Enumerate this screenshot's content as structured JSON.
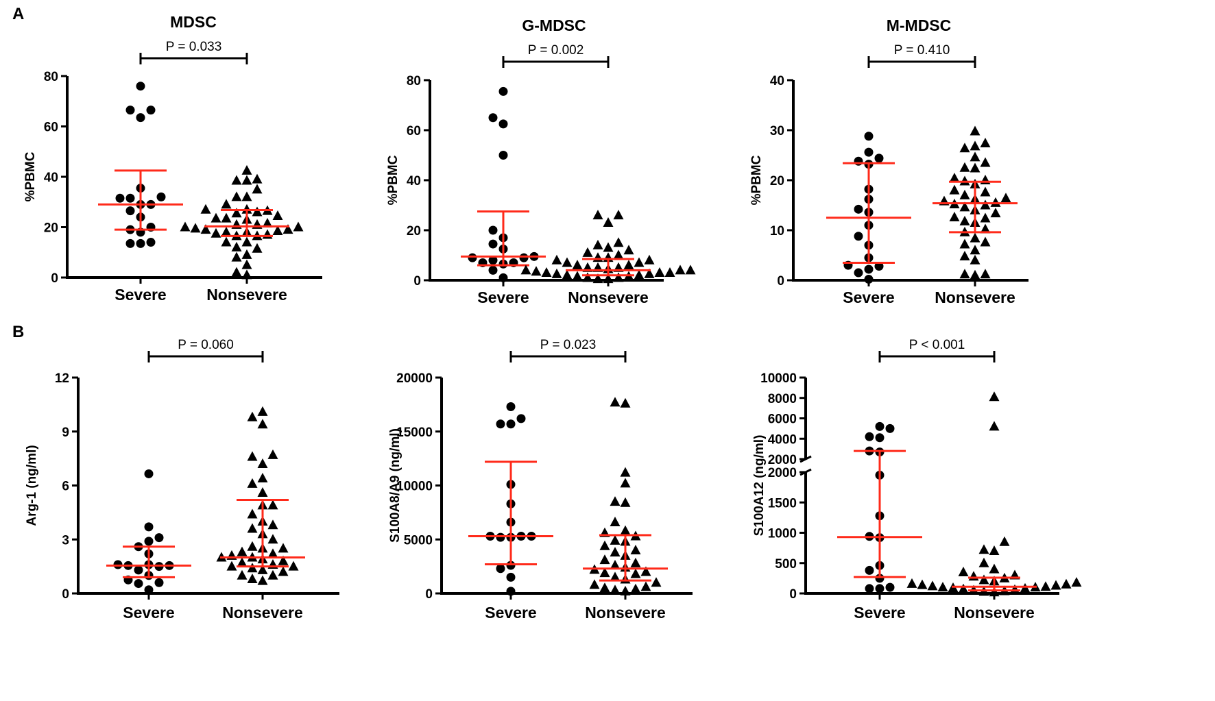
{
  "panel_labels": [
    "A",
    "B"
  ],
  "chart_data": [
    {
      "type": "scatter",
      "title": "MDSC",
      "ylabel": "%PBMC",
      "ylim": [
        0,
        80
      ],
      "yticks": [
        0,
        20,
        40,
        60,
        80
      ],
      "p_value_label": "P = 0.033",
      "categories": [
        "Severe",
        "Nonsevere"
      ],
      "series": [
        {
          "name": "Severe",
          "marker": "circle",
          "values": [
            76,
            66.5,
            66.5,
            63.5,
            35.5,
            31.5,
            31.5,
            32,
            29,
            29,
            26.5,
            24,
            20,
            19,
            18,
            14,
            13.5,
            13.5
          ],
          "median": 29,
          "q1": 19,
          "q3": 42.5
        },
        {
          "name": "Nonsevere",
          "marker": "triangle",
          "values": [
            42.5,
            38.5,
            38.5,
            39,
            35,
            32,
            32,
            29,
            27,
            27,
            26.5,
            26,
            25.5,
            24.5,
            23.5,
            23.5,
            23,
            21.5,
            21,
            21,
            20,
            20,
            19.5,
            19,
            19,
            18.5,
            18,
            18,
            17.5,
            17,
            16.5,
            16.5,
            14,
            14,
            12,
            11.5,
            9,
            8,
            5,
            2,
            1
          ],
          "median": 20.3,
          "q1": 16.5,
          "q3": 26.8
        }
      ]
    },
    {
      "type": "scatter",
      "title": "G-MDSC",
      "ylabel": "%PBMC",
      "ylim": [
        0,
        80
      ],
      "yticks": [
        0,
        20,
        40,
        60,
        80
      ],
      "p_value_label": "P = 0.002",
      "categories": [
        "Severe",
        "Nonsevere"
      ],
      "series": [
        {
          "name": "Severe",
          "marker": "circle",
          "values": [
            75.5,
            65,
            62.5,
            50,
            20,
            17,
            14.5,
            12.5,
            9.5,
            9,
            9,
            8,
            7,
            7,
            6.5,
            4,
            1
          ],
          "median": 9.5,
          "q1": 6,
          "q3": 27.5
        },
        {
          "name": "Nonsevere",
          "marker": "triangle",
          "values": [
            26,
            26,
            23,
            15,
            14,
            13,
            12,
            11,
            10,
            9,
            9,
            8,
            8,
            7,
            7,
            6,
            6,
            5,
            5,
            5,
            4.5,
            4,
            4,
            4,
            3.5,
            3,
            3,
            3,
            2.5,
            2.5,
            2,
            2,
            1.5,
            1.5,
            1,
            1,
            0.5,
            0.5
          ],
          "median": 4,
          "q1": 2,
          "q3": 8.5
        }
      ]
    },
    {
      "type": "scatter",
      "title": "M-MDSC",
      "ylabel": "%PBMC",
      "ylim": [
        0,
        40
      ],
      "yticks": [
        0,
        10,
        20,
        30,
        40
      ],
      "p_value_label": "P = 0.410",
      "categories": [
        "Severe",
        "Nonsevere"
      ],
      "series": [
        {
          "name": "Severe",
          "marker": "circle",
          "values": [
            28.8,
            25.6,
            24.4,
            23.8,
            23.2,
            18.2,
            16.2,
            14.2,
            13.6,
            11,
            8.8,
            7,
            4.5,
            3,
            2.8,
            2.2,
            1.5,
            0.2
          ],
          "median": 12.5,
          "q1": 3.5,
          "q3": 23.4
        },
        {
          "name": "Nonsevere",
          "marker": "triangle",
          "values": [
            29.8,
            27.4,
            26.8,
            26.4,
            24.6,
            23.5,
            22.5,
            22.4,
            20.4,
            20,
            19.8,
            19.2,
            18,
            17.6,
            17,
            16.4,
            16.2,
            15.8,
            15.5,
            15.2,
            15,
            14.6,
            14,
            13.4,
            12.6,
            12.4,
            11.8,
            11.5,
            10.2,
            9.6,
            8.4,
            7.6,
            7.2,
            6,
            4.8,
            4,
            1.2,
            1.2,
            1
          ],
          "median": 15.4,
          "q1": 9.6,
          "q3": 19.7
        }
      ]
    },
    {
      "type": "scatter",
      "title": "",
      "ylabel": "Arg-1 (ng/ml)",
      "ylim": [
        0,
        12
      ],
      "yticks": [
        0,
        3,
        6,
        9,
        12
      ],
      "p_value_label": "P = 0.060",
      "categories": [
        "Severe",
        "Nonsevere"
      ],
      "series": [
        {
          "name": "Severe",
          "marker": "circle",
          "values": [
            6.65,
            3.7,
            3.1,
            2.9,
            2.6,
            2.2,
            1.6,
            1.6,
            1.55,
            1.55,
            1.5,
            1.3,
            1.0,
            0.75,
            0.6,
            0.55,
            0.2
          ],
          "median": 1.55,
          "q1": 0.9,
          "q3": 2.6
        },
        {
          "name": "Nonsevere",
          "marker": "triangle",
          "values": [
            10.1,
            9.8,
            9.4,
            7.7,
            7.6,
            7.2,
            6.4,
            6.1,
            5.6,
            4.9,
            4.9,
            4.4,
            4.0,
            3.8,
            3.6,
            3.3,
            3.0,
            2.6,
            2.5,
            2.5,
            2.3,
            2.2,
            2.1,
            2.0,
            2.0,
            1.9,
            1.8,
            1.7,
            1.6,
            1.5,
            1.5,
            1.4,
            1.3,
            1.2,
            1.0,
            1.0,
            0.8,
            0.7
          ],
          "median": 2.0,
          "q1": 1.5,
          "q3": 5.2
        }
      ]
    },
    {
      "type": "scatter",
      "title": "",
      "ylabel": "S100A8/A9 (ng/ml)",
      "ylim": [
        0,
        20000
      ],
      "yticks": [
        0,
        5000,
        10000,
        15000,
        20000
      ],
      "p_value_label": "P = 0.023",
      "categories": [
        "Severe",
        "Nonsevere"
      ],
      "series": [
        {
          "name": "Severe",
          "marker": "circle",
          "values": [
            17300,
            16200,
            15700,
            15700,
            10100,
            8300,
            6600,
            5300,
            5300,
            5300,
            5200,
            5200,
            2600,
            2300,
            1500,
            200
          ],
          "median": 5300,
          "q1": 2700,
          "q3": 12200
        },
        {
          "name": "Nonsevere",
          "marker": "triangle",
          "values": [
            17700,
            17600,
            11200,
            10200,
            8500,
            8400,
            6600,
            5800,
            5600,
            5300,
            4900,
            4800,
            4400,
            4000,
            3800,
            3500,
            3100,
            2800,
            2600,
            2400,
            2200,
            2000,
            1900,
            1800,
            1500,
            1300,
            1000,
            800,
            600,
            500,
            400,
            300,
            200
          ],
          "median": 2300,
          "q1": 1200,
          "q3": 5400
        }
      ]
    },
    {
      "type": "scatter",
      "title": "",
      "ylabel": "S100A12 (ng/ml)",
      "ylim": [
        0,
        10000
      ],
      "axis_break": [
        2000,
        2000
      ],
      "yticks_lower": [
        0,
        500,
        1000,
        1500,
        2000
      ],
      "yticks_upper": [
        2000,
        4000,
        6000,
        8000,
        10000
      ],
      "p_value_label": "P < 0.001",
      "categories": [
        "Severe",
        "Nonsevere"
      ],
      "series": [
        {
          "name": "Severe",
          "marker": "circle",
          "values": [
            5200,
            5000,
            4200,
            4100,
            2800,
            2700,
            1950,
            1280,
            940,
            920,
            460,
            380,
            250,
            100,
            80,
            80
          ],
          "median": 930,
          "q1": 270,
          "q3": 2800
        },
        {
          "name": "Nonsevere",
          "marker": "triangle",
          "values": [
            8100,
            5200,
            850,
            720,
            700,
            500,
            400,
            350,
            300,
            280,
            250,
            220,
            200,
            180,
            160,
            150,
            140,
            130,
            120,
            110,
            100,
            100,
            90,
            80,
            70,
            60,
            50,
            40,
            30,
            20
          ],
          "median": 110,
          "q1": 50,
          "q3": 260
        }
      ]
    }
  ],
  "colors": {
    "points": "#000000",
    "summary": "#ff2a1a",
    "axis": "#000000"
  }
}
